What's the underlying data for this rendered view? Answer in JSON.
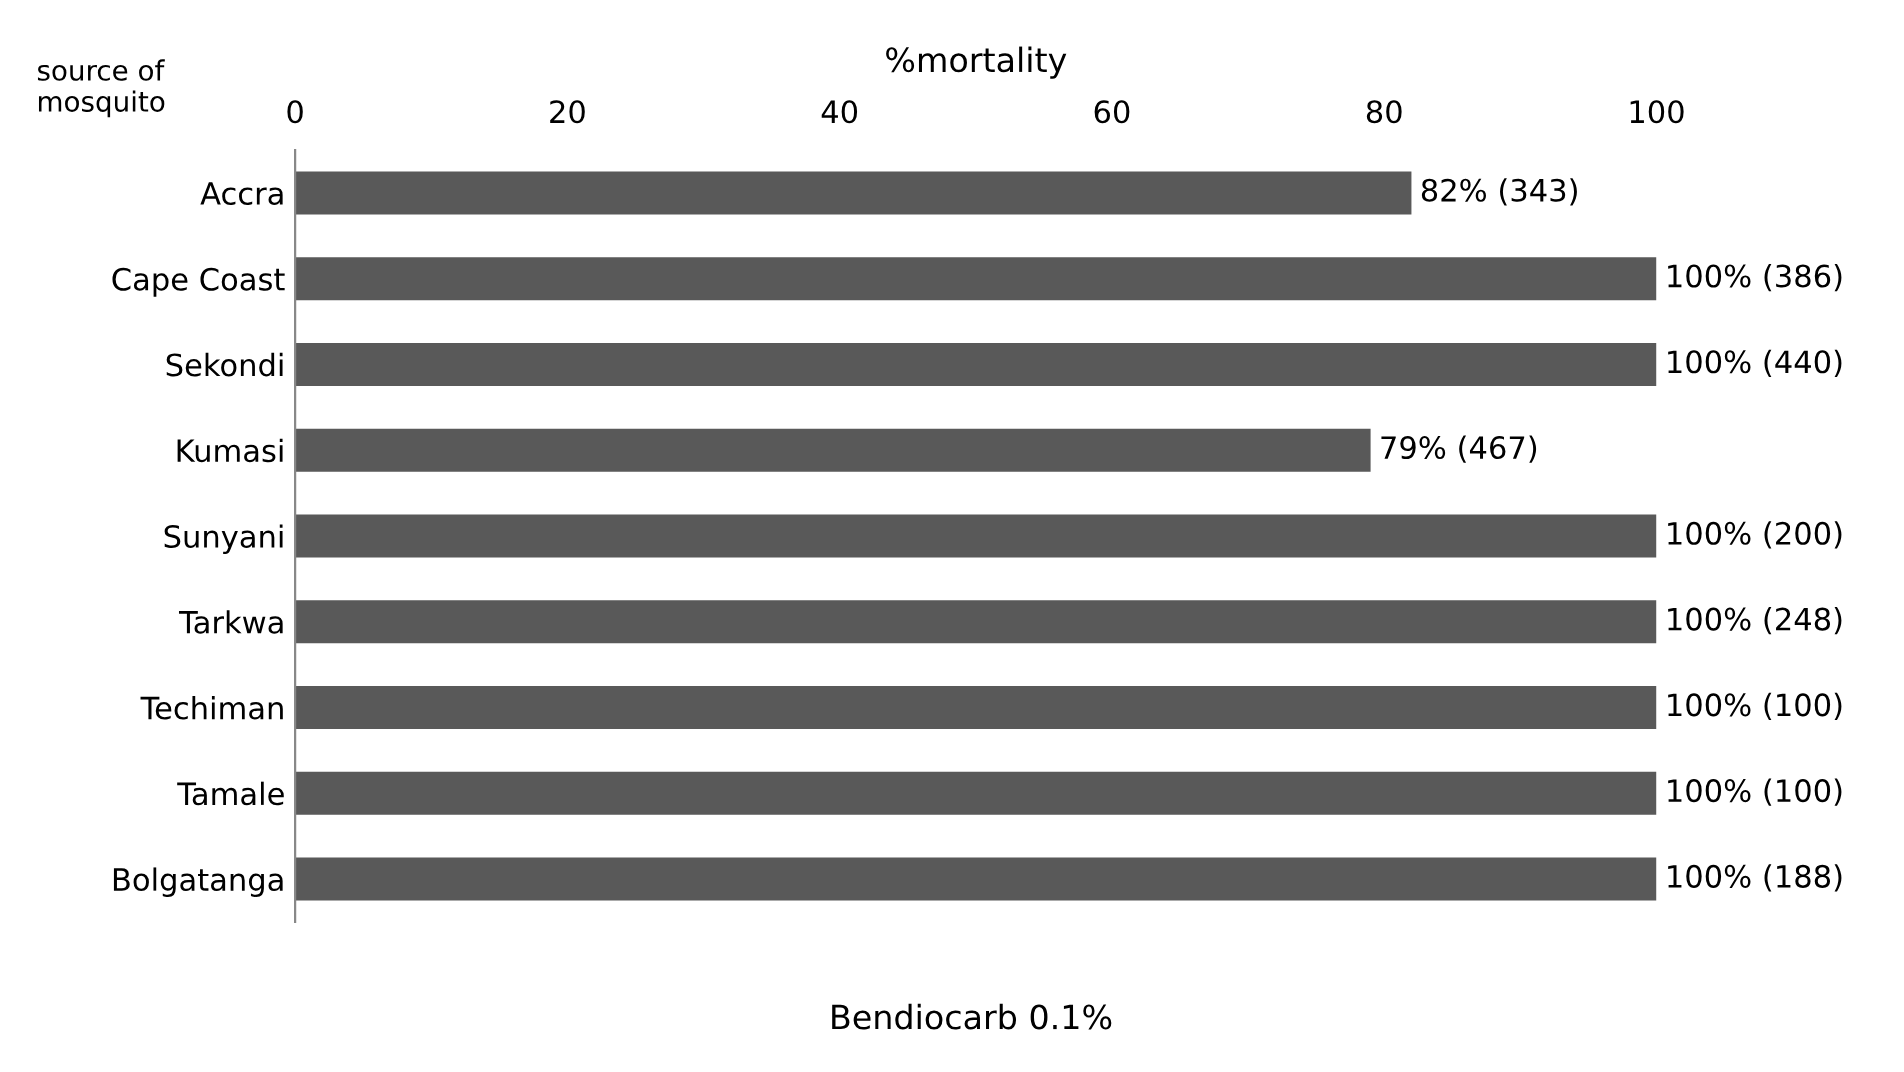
{
  "chart_data": {
    "type": "bar",
    "orientation": "horizontal",
    "title": "Bendiocarb 0.1%",
    "xlabel": "%mortality",
    "ylabel": "source of\nmosquito",
    "categories": [
      "Accra",
      "Cape Coast",
      "Sekondi",
      "Kumasi",
      "Sunyani",
      "Tarkwa",
      "Techiman",
      "Tamale",
      "Bolgatanga"
    ],
    "values": [
      82,
      100,
      100,
      79,
      100,
      100,
      100,
      100,
      100
    ],
    "value_labels": [
      "82% (343)",
      "100% (386)",
      "100% (440)",
      "79% (467)",
      "100% (200)",
      "100% (248)",
      "100% (100)",
      "100% (100)",
      "100% (188)"
    ],
    "color": "#595959",
    "xlim": [
      0,
      100
    ],
    "xticks": [
      0,
      20,
      40,
      60,
      80,
      100
    ],
    "grid": false,
    "legend": false
  }
}
